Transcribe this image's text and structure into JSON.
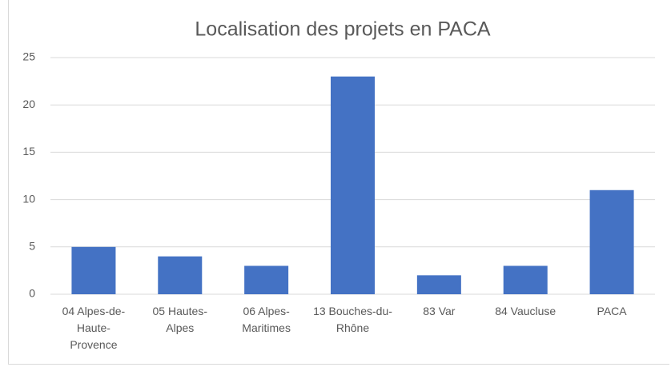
{
  "chart_data": {
    "type": "bar",
    "title": "Localisation des projets en PACA",
    "categories": [
      "04 Alpes-de-Haute-Provence",
      "05 Hautes-Alpes",
      "06 Alpes-Maritimes",
      "13 Bouches-du-Rhône",
      "83 Var",
      "84 Vaucluse",
      "PACA"
    ],
    "values": [
      5,
      4,
      3,
      23,
      2,
      3,
      11
    ],
    "color": "#4472c4",
    "ylim": [
      0,
      25
    ],
    "yticks": [
      0,
      5,
      10,
      15,
      20,
      25
    ],
    "grid": true
  }
}
